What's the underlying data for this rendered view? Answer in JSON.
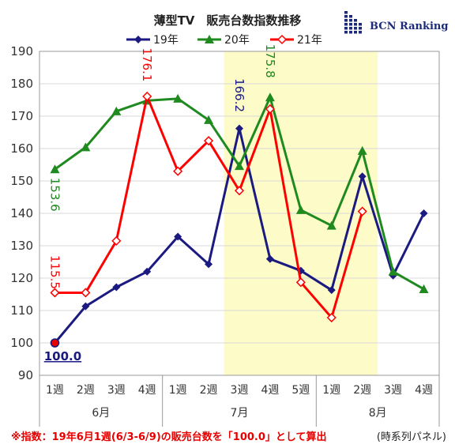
{
  "chart_data": {
    "type": "line",
    "title": "薄型TV　販売台数指数推移",
    "categories": [
      "1週",
      "2週",
      "3週",
      "4週",
      "1週",
      "2週",
      "3週",
      "4週",
      "5週",
      "1週",
      "2週",
      "3週",
      "4週"
    ],
    "months": [
      {
        "label": "6月",
        "span": [
          0,
          3
        ]
      },
      {
        "label": "7月",
        "span": [
          4,
          8
        ]
      },
      {
        "label": "8月",
        "span": [
          9,
          12
        ]
      }
    ],
    "ylim": [
      90,
      190
    ],
    "yticks": [
      90,
      100,
      110,
      120,
      130,
      140,
      150,
      160,
      170,
      180,
      190
    ],
    "highlight_span": [
      6,
      10
    ],
    "grid": true,
    "legend_position": "top-center",
    "series": [
      {
        "name": "19年",
        "color": "#1a1a80",
        "marker": "diamond",
        "values": [
          100.0,
          111.3,
          117.2,
          122.0,
          132.8,
          124.3,
          166.2,
          125.9,
          122.3,
          116.3,
          151.4,
          120.8,
          140.0
        ]
      },
      {
        "name": "20年",
        "color": "#1f8a1f",
        "marker": "triangle",
        "values": [
          153.6,
          160.4,
          171.5,
          174.8,
          175.4,
          168.8,
          154.6,
          175.8,
          141.0,
          136.2,
          159.3,
          122.0,
          116.6
        ]
      },
      {
        "name": "21年",
        "color": "#ff0000",
        "marker": "diamond-open",
        "values": [
          115.5,
          115.5,
          131.5,
          176.1,
          153.0,
          162.4,
          147.0,
          172.2,
          118.7,
          107.8,
          140.6,
          null,
          null
        ]
      }
    ],
    "annotations": [
      {
        "text": "100.0",
        "series": 0,
        "index": 0,
        "color": "#1a1a80"
      },
      {
        "text": "153.6",
        "series": 1,
        "index": 0,
        "color": "#1f8a1f"
      },
      {
        "text": "115.5",
        "series": 2,
        "index": 0,
        "color": "#ff0000"
      },
      {
        "text": "176.1",
        "series": 2,
        "index": 3,
        "color": "#ff0000"
      },
      {
        "text": "166.2",
        "series": 0,
        "index": 6,
        "color": "#1a1a80"
      },
      {
        "text": "175.8",
        "series": 1,
        "index": 7,
        "color": "#1f8a1f"
      }
    ]
  },
  "logo": {
    "text": "BCN Ranking"
  },
  "footnote": {
    "text": "※指数：19年6月1週(6/3-6/9)の販売台数を「100.0」として算出",
    "panel": "(時系列パネル)"
  },
  "colors": {
    "highlight": "#fdfcc8",
    "grid": "#d9d9d9",
    "axis": "#999999"
  }
}
